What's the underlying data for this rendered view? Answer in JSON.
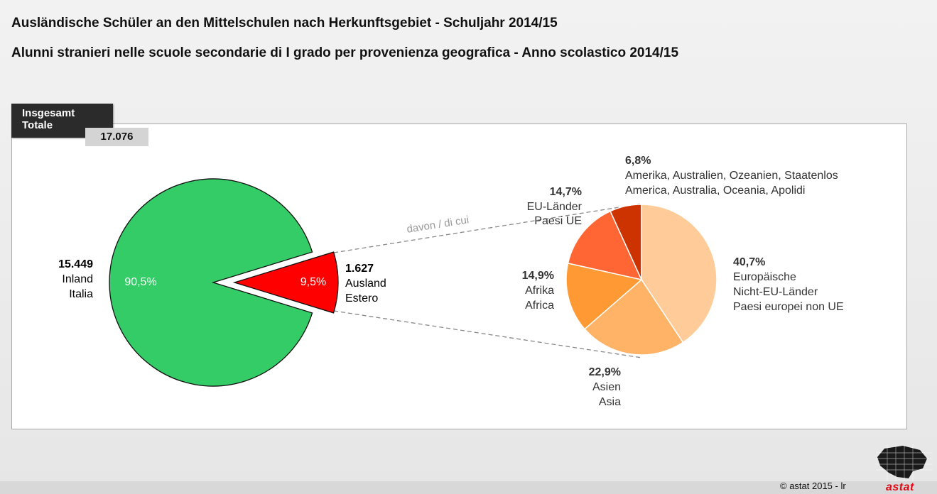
{
  "header": {
    "title_de": "Ausländische Schüler an den Mittelschulen nach Herkunftsgebiet  - Schuljahr 2014/15",
    "title_it": "Alunni stranieri nelle scuole secondarie di I grado per provenienza geografica - Anno scolastico 2014/15"
  },
  "total": {
    "label_line1": "Insgesamt",
    "label_line2": "Totale",
    "value": "17.076"
  },
  "connector_label": "davon / di cui",
  "colors": {
    "inland": "#33cc66",
    "ausland": "#ff0000",
    "europe_non_eu": "#ffcc99",
    "asia": "#ffb366",
    "africa": "#ff9933",
    "eu": "#ff6633",
    "america": "#cc3300"
  },
  "chart_data": [
    {
      "type": "pie",
      "slices": [
        {
          "key": "inland",
          "value": 90.5,
          "pct_label": "90,5%",
          "count": "15.449",
          "name_de": "Inland",
          "name_it": "Italia"
        },
        {
          "key": "ausland",
          "value": 9.5,
          "pct_label": "9,5%",
          "count": "1.627",
          "name_de": "Ausland",
          "name_it": "Estero"
        }
      ]
    },
    {
      "type": "pie",
      "slices": [
        {
          "key": "europe_non_eu",
          "value": 40.7,
          "pct_label": "40,7%",
          "line1": "Europäische",
          "line2": "Nicht-EU-Länder",
          "line3": "Paesi europei non UE"
        },
        {
          "key": "asia",
          "value": 22.9,
          "pct_label": "22,9%",
          "line1": "Asien",
          "line2": "Asia"
        },
        {
          "key": "africa",
          "value": 14.9,
          "pct_label": "14,9%",
          "line1": "Afrika",
          "line2": "Africa"
        },
        {
          "key": "eu",
          "value": 14.7,
          "pct_label": "14,7%",
          "line1": "EU-Länder",
          "line2": "Paesi UE"
        },
        {
          "key": "america",
          "value": 6.8,
          "pct_label": "6,8%",
          "line1": "Amerika, Australien, Ozeanien, Staatenlos",
          "line2": "America, Australia, Oceania, Apolidi"
        }
      ]
    }
  ],
  "footer": {
    "copyright": "©  astat 2015 - lr",
    "logo_text": "astat"
  }
}
